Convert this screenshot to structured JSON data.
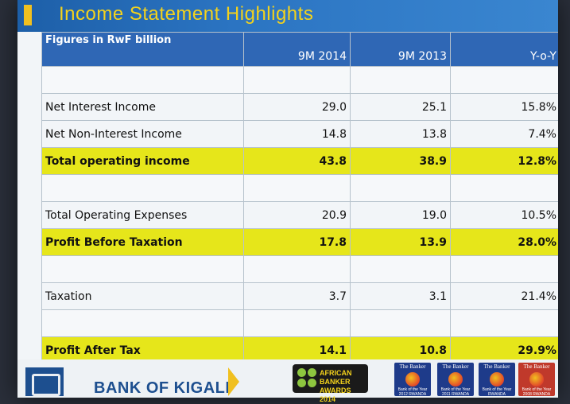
{
  "slide": {
    "title": "Income Statement Highlights"
  },
  "table": {
    "unit_label": "Figures in RwF billion",
    "columns": [
      "9M 2014",
      "9M 2013",
      "Y-o-Y"
    ],
    "rows": [
      {
        "label": "",
        "values": [
          "",
          "",
          ""
        ],
        "highlight": false
      },
      {
        "label": "Net Interest Income",
        "values": [
          "29.0",
          "25.1",
          "15.8%"
        ],
        "highlight": false
      },
      {
        "label": "Net Non-Interest Income",
        "values": [
          "14.8",
          "13.8",
          "7.4%"
        ],
        "highlight": false
      },
      {
        "label": "Total operating income",
        "values": [
          "43.8",
          "38.9",
          "12.8%"
        ],
        "highlight": true
      },
      {
        "label": "",
        "values": [
          "",
          "",
          ""
        ],
        "highlight": false
      },
      {
        "label": "Total Operating Expenses",
        "values": [
          "20.9",
          "19.0",
          "10.5%"
        ],
        "highlight": false
      },
      {
        "label": "Profit Before Taxation",
        "values": [
          "17.8",
          "13.9",
          "28.0%"
        ],
        "highlight": true
      },
      {
        "label": "",
        "values": [
          "",
          "",
          ""
        ],
        "highlight": false
      },
      {
        "label": "Taxation",
        "values": [
          "3.7",
          "3.1",
          "21.4%"
        ],
        "highlight": false
      },
      {
        "label": "",
        "values": [
          "",
          "",
          ""
        ],
        "highlight": false
      },
      {
        "label": "Profit After Tax",
        "values": [
          "14.1",
          "10.8",
          "29.9%"
        ],
        "highlight": true
      }
    ]
  },
  "footer": {
    "bank_name": "BANK OF KIGALI",
    "award_line1": "AFRICAN BANKER",
    "award_line2": "AWARDS 2014",
    "badges": [
      {
        "title": "The Banker",
        "color": "#1e3b8a",
        "caption": "Bank of the Year 2012 RWANDA"
      },
      {
        "title": "The Banker",
        "color": "#1e3b8a",
        "caption": "Bank of the Year 2011 RWANDA"
      },
      {
        "title": "The Banker",
        "color": "#1e3b8a",
        "caption": "Bank of the Year RWANDA"
      },
      {
        "title": "The Banker",
        "color": "#c0392b",
        "caption": "Bank of the Year 2008 RWANDA"
      }
    ]
  },
  "colors": {
    "title_bar": "#2b74c2",
    "title_text": "#f3d21c",
    "header_row": "#2f67b5",
    "highlight_row": "#e6e61a"
  }
}
